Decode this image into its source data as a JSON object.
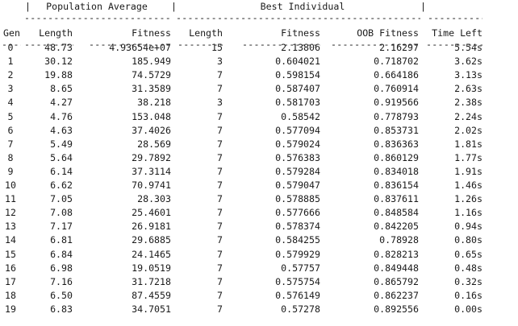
{
  "header": {
    "bar1": "|",
    "population_average": "Population Average",
    "bar2": "|",
    "best_individual": "Best Individual",
    "bar3": "|"
  },
  "columns": {
    "gen": "Gen",
    "pop_length": "Length",
    "pop_fitness": "Fitness",
    "best_length": "Length",
    "best_fitness": "Fitness",
    "oob_fitness": "OOB Fitness",
    "time_left": "Time Left"
  },
  "separators": {
    "top_left": "-----------------------------------------------------",
    "top_right": "----------",
    "under_header": "-------------------------------------------------------------------------------------------------------"
  },
  "rows": [
    {
      "gen": "0",
      "pop_length": "48.73",
      "pop_fitness": "4.93654e+07",
      "best_length": "15",
      "best_fitness": "2.13806",
      "oob_fitness": "2.16297",
      "time_left": "5.54s"
    },
    {
      "gen": "1",
      "pop_length": "30.12",
      "pop_fitness": "185.949",
      "best_length": "3",
      "best_fitness": "0.604021",
      "oob_fitness": "0.718702",
      "time_left": "3.62s"
    },
    {
      "gen": "2",
      "pop_length": "19.88",
      "pop_fitness": "74.5729",
      "best_length": "7",
      "best_fitness": "0.598154",
      "oob_fitness": "0.664186",
      "time_left": "3.13s"
    },
    {
      "gen": "3",
      "pop_length": "8.65",
      "pop_fitness": "31.3589",
      "best_length": "7",
      "best_fitness": "0.587407",
      "oob_fitness": "0.760914",
      "time_left": "2.63s"
    },
    {
      "gen": "4",
      "pop_length": "4.27",
      "pop_fitness": "38.218",
      "best_length": "3",
      "best_fitness": "0.581703",
      "oob_fitness": "0.919566",
      "time_left": "2.38s"
    },
    {
      "gen": "5",
      "pop_length": "4.76",
      "pop_fitness": "153.048",
      "best_length": "7",
      "best_fitness": "0.58542",
      "oob_fitness": "0.778793",
      "time_left": "2.24s"
    },
    {
      "gen": "6",
      "pop_length": "4.63",
      "pop_fitness": "37.4026",
      "best_length": "7",
      "best_fitness": "0.577094",
      "oob_fitness": "0.853731",
      "time_left": "2.02s"
    },
    {
      "gen": "7",
      "pop_length": "5.49",
      "pop_fitness": "28.569",
      "best_length": "7",
      "best_fitness": "0.579024",
      "oob_fitness": "0.836363",
      "time_left": "1.81s"
    },
    {
      "gen": "8",
      "pop_length": "5.64",
      "pop_fitness": "29.7892",
      "best_length": "7",
      "best_fitness": "0.576383",
      "oob_fitness": "0.860129",
      "time_left": "1.77s"
    },
    {
      "gen": "9",
      "pop_length": "6.14",
      "pop_fitness": "37.3114",
      "best_length": "7",
      "best_fitness": "0.579284",
      "oob_fitness": "0.834018",
      "time_left": "1.91s"
    },
    {
      "gen": "10",
      "pop_length": "6.62",
      "pop_fitness": "70.9741",
      "best_length": "7",
      "best_fitness": "0.579047",
      "oob_fitness": "0.836154",
      "time_left": "1.46s"
    },
    {
      "gen": "11",
      "pop_length": "7.05",
      "pop_fitness": "28.303",
      "best_length": "7",
      "best_fitness": "0.578885",
      "oob_fitness": "0.837611",
      "time_left": "1.26s"
    },
    {
      "gen": "12",
      "pop_length": "7.08",
      "pop_fitness": "25.4601",
      "best_length": "7",
      "best_fitness": "0.577666",
      "oob_fitness": "0.848584",
      "time_left": "1.16s"
    },
    {
      "gen": "13",
      "pop_length": "7.17",
      "pop_fitness": "26.9181",
      "best_length": "7",
      "best_fitness": "0.578374",
      "oob_fitness": "0.842205",
      "time_left": "0.94s"
    },
    {
      "gen": "14",
      "pop_length": "6.81",
      "pop_fitness": "29.6885",
      "best_length": "7",
      "best_fitness": "0.584255",
      "oob_fitness": "0.78928",
      "time_left": "0.80s"
    },
    {
      "gen": "15",
      "pop_length": "6.84",
      "pop_fitness": "24.1465",
      "best_length": "7",
      "best_fitness": "0.579929",
      "oob_fitness": "0.828213",
      "time_left": "0.65s"
    },
    {
      "gen": "16",
      "pop_length": "6.98",
      "pop_fitness": "19.0519",
      "best_length": "7",
      "best_fitness": "0.57757",
      "oob_fitness": "0.849448",
      "time_left": "0.48s"
    },
    {
      "gen": "17",
      "pop_length": "7.16",
      "pop_fitness": "31.7218",
      "best_length": "7",
      "best_fitness": "0.575754",
      "oob_fitness": "0.865792",
      "time_left": "0.32s"
    },
    {
      "gen": "18",
      "pop_length": "6.50",
      "pop_fitness": "87.4559",
      "best_length": "7",
      "best_fitness": "0.576149",
      "oob_fitness": "0.862237",
      "time_left": "0.16s"
    },
    {
      "gen": "19",
      "pop_length": "6.83",
      "pop_fitness": "34.7051",
      "best_length": "7",
      "best_fitness": "0.57278",
      "oob_fitness": "0.892556",
      "time_left": "0.00s"
    }
  ]
}
